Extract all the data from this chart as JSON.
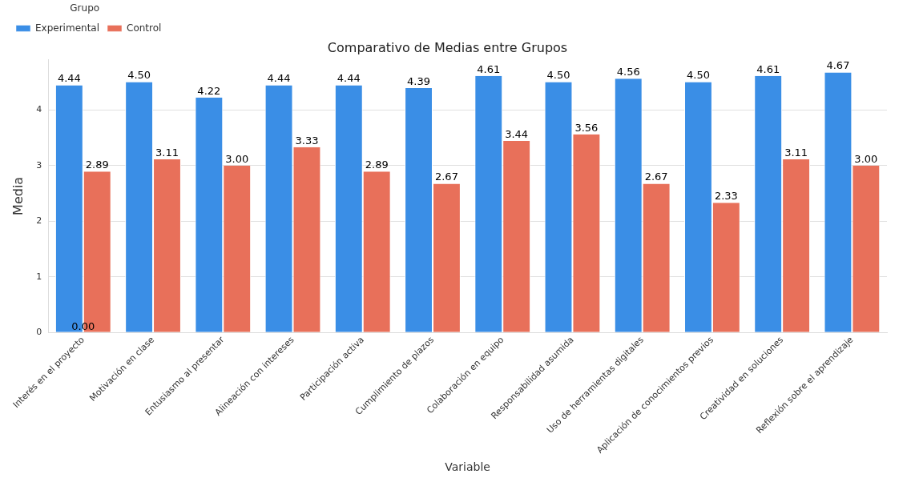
{
  "chart_data": {
    "type": "bar",
    "title": "Comparativo de Medias entre Grupos",
    "xlabel": "Variable",
    "ylabel": "Media",
    "legend_title": "Grupo",
    "categories": [
      "Interés en el proyecto",
      "Motivación en clase",
      "Entusiasmo al presentar",
      "Alineación con intereses",
      "Participación activa",
      "Cumplimiento de plazos",
      "Colaboración en equipo",
      "Responsabilidad asumida",
      "Uso de herramientas digitales",
      "Aplicación de conocimientos previos",
      "Creatividad en soluciones",
      "Reflexión sobre el aprendizaje"
    ],
    "series": [
      {
        "name": "Experimental",
        "color": "#3a8ee6",
        "values": [
          4.44,
          4.5,
          4.22,
          4.44,
          4.44,
          4.39,
          4.61,
          4.5,
          4.56,
          4.5,
          4.61,
          4.67
        ],
        "value_labels": [
          "4.44",
          "4.50",
          "4.22",
          "4.44",
          "4.44",
          "4.39",
          "4.61",
          "4.50",
          "4.56",
          "4.50",
          "4.61",
          "4.67"
        ]
      },
      {
        "name": "Control",
        "color": "#e8705a",
        "values": [
          2.89,
          3.11,
          3.0,
          3.33,
          2.89,
          2.67,
          3.44,
          3.56,
          2.67,
          2.33,
          3.11,
          3.0
        ],
        "value_labels": [
          "2.89",
          "3.11",
          "3.00",
          "3.33",
          "2.89",
          "2.67",
          "3.44",
          "3.56",
          "2.67",
          "2.33",
          "3.11",
          "3.00"
        ]
      }
    ],
    "annotations": [
      {
        "text": "0.00",
        "x": "Interés en el proyecto",
        "y": 0
      }
    ],
    "ylim": [
      0,
      4.9
    ],
    "yticks": [
      0,
      1,
      2,
      3,
      4
    ],
    "grid": "y",
    "legend": "top left"
  }
}
